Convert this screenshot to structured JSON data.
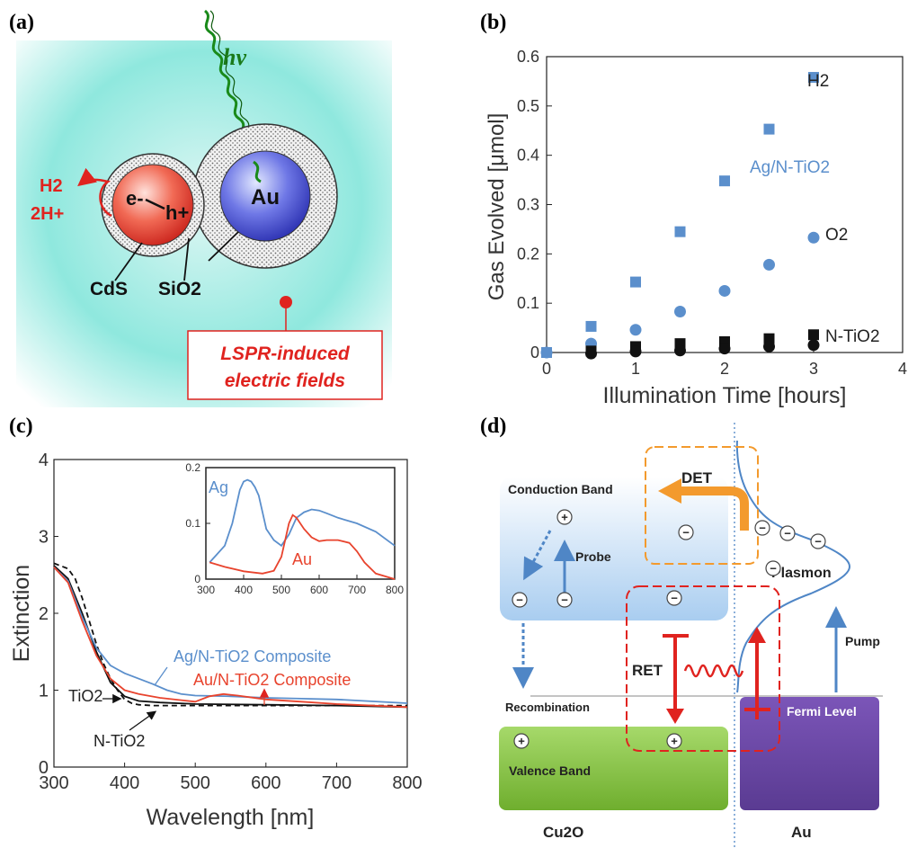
{
  "panels": {
    "a": {
      "label": "(a)",
      "photon": "hν",
      "h2": "H2",
      "two_h": "2H+",
      "electron": "e-",
      "hole": "h+",
      "au": "Au",
      "cds": "CdS",
      "sio2": "SiO2",
      "lspr_line1": "LSPR-induced",
      "lspr_line2": "electric fields"
    },
    "b": {
      "label": "(b)",
      "ylabel": "Gas Evolved [μmol]",
      "xlabel": "Illumination Time [hours]",
      "label_h2": "H2",
      "label_ag": "Ag/N-TiO2",
      "label_o2": "O2",
      "label_ntio2": "N-TiO2"
    },
    "c": {
      "label": "(c)",
      "ylabel": "Extinction",
      "xlabel": "Wavelength [nm]",
      "label_ag_comp": "Ag/N-TiO2 Composite",
      "label_au_comp": "Au/N-TiO2 Composite",
      "label_tio2": "TiO2",
      "label_ntio2": "N-TiO2",
      "inset_ag": "Ag",
      "inset_au": "Au"
    },
    "d": {
      "label": "(d)",
      "conduction_band": "Conduction Band",
      "valence_band": "Valence Band",
      "probe": "Probe",
      "pump": "Pump",
      "plasmon": "Plasmon",
      "fermi": "Fermi Level",
      "recombination": "Recombination",
      "det": "DET",
      "ret": "RET",
      "cu2o": "Cu2O",
      "au": "Au"
    }
  },
  "chart_data": [
    {
      "panel": "b",
      "type": "scatter",
      "xlabel": "Illumination Time [hours]",
      "ylabel": "Gas Evolved [μmol]",
      "xlim": [
        0,
        4
      ],
      "ylim": [
        0,
        0.6
      ],
      "xticks": [
        0,
        1,
        2,
        3,
        4
      ],
      "yticks": [
        0,
        0.1,
        0.2,
        0.3,
        0.4,
        0.5,
        0.6
      ],
      "series": [
        {
          "name": "H2 (Ag/N-TiO2)",
          "marker": "square",
          "color": "#5b8fcc",
          "x": [
            0,
            0.5,
            1,
            1.5,
            2,
            2.5,
            3
          ],
          "y": [
            0,
            0.053,
            0.143,
            0.245,
            0.348,
            0.453,
            0.558
          ]
        },
        {
          "name": "O2 (Ag/N-TiO2)",
          "marker": "circle",
          "color": "#5b8fcc",
          "x": [
            0,
            0.5,
            1,
            1.5,
            2,
            2.5,
            3
          ],
          "y": [
            0,
            0.018,
            0.046,
            0.083,
            0.125,
            0.178,
            0.233
          ]
        },
        {
          "name": "H2 (N-TiO2)",
          "marker": "square",
          "color": "#111111",
          "x": [
            0.5,
            1,
            1.5,
            2,
            2.5,
            3
          ],
          "y": [
            0.003,
            0.012,
            0.018,
            0.022,
            0.028,
            0.036
          ]
        },
        {
          "name": "O2 (N-TiO2)",
          "marker": "circle",
          "color": "#111111",
          "x": [
            0.5,
            1,
            1.5,
            2,
            2.5,
            3
          ],
          "y": [
            -0.002,
            0.002,
            0.004,
            0.008,
            0.012,
            0.015
          ]
        }
      ]
    },
    {
      "panel": "c",
      "type": "line",
      "xlabel": "Wavelength [nm]",
      "ylabel": "Extinction",
      "xlim": [
        300,
        800
      ],
      "ylim": [
        0,
        4
      ],
      "xticks": [
        300,
        400,
        500,
        600,
        700,
        800
      ],
      "yticks": [
        0,
        1,
        2,
        3,
        4
      ],
      "series": [
        {
          "name": "TiO2",
          "color": "#111111",
          "dash": true,
          "x": [
            300,
            320,
            330,
            340,
            350,
            360,
            370,
            380,
            390,
            400,
            410,
            420,
            440,
            500,
            600,
            700,
            800
          ],
          "y": [
            2.65,
            2.58,
            2.45,
            2.2,
            1.9,
            1.6,
            1.35,
            1.15,
            1.0,
            0.88,
            0.83,
            0.81,
            0.8,
            0.8,
            0.8,
            0.8,
            0.8
          ]
        },
        {
          "name": "N-TiO2",
          "color": "#111111",
          "dash": false,
          "x": [
            300,
            320,
            340,
            360,
            380,
            400,
            420,
            450,
            500,
            600,
            700,
            800
          ],
          "y": [
            2.62,
            2.45,
            2.0,
            1.5,
            1.1,
            0.92,
            0.86,
            0.84,
            0.82,
            0.81,
            0.8,
            0.78
          ]
        },
        {
          "name": "Ag/N-TiO2 Composite",
          "color": "#5b8fcc",
          "dash": false,
          "x": [
            300,
            320,
            340,
            360,
            380,
            400,
            420,
            440,
            460,
            480,
            500,
            550,
            600,
            650,
            700,
            800
          ],
          "y": [
            2.6,
            2.42,
            1.95,
            1.55,
            1.32,
            1.22,
            1.15,
            1.08,
            1.0,
            0.95,
            0.93,
            0.92,
            0.9,
            0.89,
            0.88,
            0.83
          ]
        },
        {
          "name": "Au/N-TiO2 Composite",
          "color": "#e8432d",
          "dash": false,
          "x": [
            300,
            320,
            340,
            360,
            380,
            400,
            420,
            450,
            480,
            500,
            520,
            540,
            560,
            600,
            650,
            700,
            800
          ],
          "y": [
            2.6,
            2.4,
            1.9,
            1.45,
            1.15,
            1.0,
            0.95,
            0.9,
            0.87,
            0.85,
            0.92,
            0.95,
            0.93,
            0.88,
            0.85,
            0.82,
            0.78
          ]
        }
      ]
    },
    {
      "panel": "c-inset",
      "type": "line",
      "xlim": [
        300,
        800
      ],
      "ylim": [
        0,
        0.2
      ],
      "xticks": [
        300,
        400,
        500,
        600,
        700,
        800
      ],
      "yticks": [
        0,
        0.1,
        0.2
      ],
      "series": [
        {
          "name": "Ag",
          "color": "#5b8fcc",
          "x": [
            310,
            330,
            350,
            370,
            390,
            400,
            410,
            420,
            430,
            440,
            450,
            460,
            480,
            500,
            520,
            540,
            560,
            580,
            600,
            620,
            650,
            700,
            750,
            800
          ],
          "y": [
            0.03,
            0.045,
            0.06,
            0.1,
            0.16,
            0.175,
            0.178,
            0.175,
            0.165,
            0.15,
            0.12,
            0.09,
            0.07,
            0.06,
            0.08,
            0.11,
            0.12,
            0.125,
            0.123,
            0.118,
            0.11,
            0.1,
            0.085,
            0.06
          ]
        },
        {
          "name": "Au",
          "color": "#e8432d",
          "x": [
            310,
            350,
            400,
            450,
            480,
            500,
            520,
            530,
            540,
            560,
            580,
            600,
            620,
            650,
            680,
            700,
            720,
            750,
            800
          ],
          "y": [
            0.03,
            0.022,
            0.014,
            0.01,
            0.015,
            0.04,
            0.1,
            0.115,
            0.11,
            0.09,
            0.075,
            0.068,
            0.07,
            0.07,
            0.065,
            0.05,
            0.03,
            0.01,
            0.0
          ]
        }
      ]
    }
  ]
}
